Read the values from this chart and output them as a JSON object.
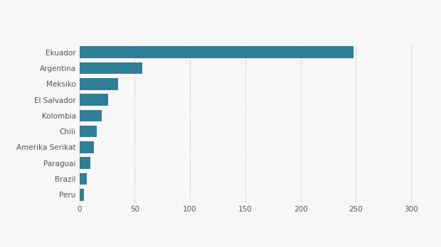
{
  "categories": [
    "Peru",
    "Brazil",
    "Paraguai",
    "Amerika Serikat",
    "Chili",
    "Kolombia",
    "El Salvador",
    "Meksiko",
    "Argentina",
    "Ekuador"
  ],
  "values": [
    4,
    7,
    10,
    13,
    16,
    20,
    26,
    35,
    57,
    248
  ],
  "bar_color": "#2e7f96",
  "background_color": "#f7f7f7",
  "xlim": [
    0,
    315
  ],
  "xticks": [
    0,
    50,
    100,
    150,
    200,
    250,
    300
  ],
  "tick_label_fontsize": 7.5,
  "bar_height": 0.75,
  "figsize": [
    6.2,
    3.48
  ],
  "dpi": 100
}
